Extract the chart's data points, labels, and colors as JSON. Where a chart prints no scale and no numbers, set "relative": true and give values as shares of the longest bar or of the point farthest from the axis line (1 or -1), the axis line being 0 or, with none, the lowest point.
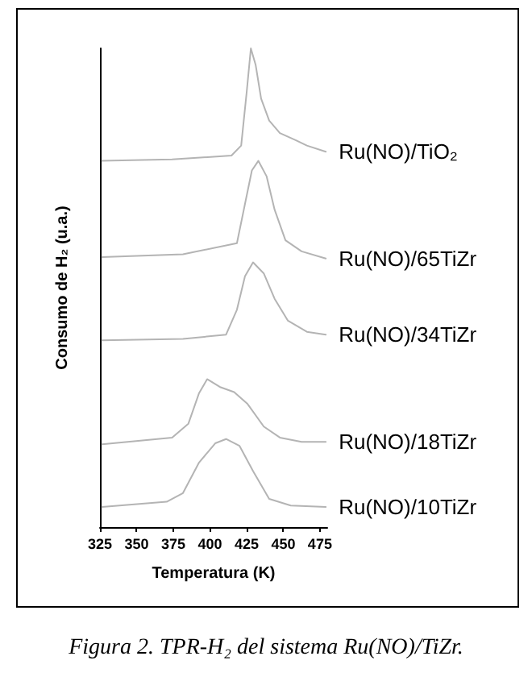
{
  "chart_data": {
    "type": "line",
    "title": "Figura 2. TPR-H₂ del sistema Ru(NO)/TiZr.",
    "xlabel": "Temperatura (K)",
    "ylabel": "Consumo de H₂ (u.a.)",
    "relative": true,
    "marker": "none",
    "line_style": "solid",
    "grid": false,
    "legend": false,
    "xlim": [
      325,
      480
    ],
    "xticks": [
      325,
      350,
      375,
      400,
      425,
      450,
      475
    ],
    "series": [
      {
        "name": "Ru(NO)/TiO₂",
        "color": "#b4b4b4",
        "x": [
          326.5,
          374.2,
          414.7,
          421.3,
          425.0,
          427.9,
          431.2,
          434.9,
          440.4,
          447.7,
          458.7,
          466.1,
          479.0
        ],
        "values": [
          0.765,
          0.768,
          0.776,
          0.797,
          0.907,
          1,
          0.965,
          0.895,
          0.849,
          0.823,
          0.808,
          0.797,
          0.784
        ]
      },
      {
        "name": "Ru(NO)/65TiZr",
        "color": "#b4b4b4",
        "x": [
          326.5,
          381.6,
          418.4,
          423.9,
          428.6,
          433.0,
          438.6,
          444.1,
          451.5,
          462.5,
          479.0
        ],
        "values": [
          0.564,
          0.57,
          0.593,
          0.675,
          0.745,
          0.765,
          0.733,
          0.663,
          0.599,
          0.576,
          0.561
        ]
      },
      {
        "name": "Ru(NO)/34TiZr",
        "color": "#b4b4b4",
        "x": [
          326.5,
          381.6,
          411.0,
          418.4,
          423.9,
          429.4,
          436.7,
          444.1,
          453.2,
          466.1,
          479.0
        ],
        "values": [
          0.39,
          0.393,
          0.402,
          0.454,
          0.524,
          0.553,
          0.53,
          0.477,
          0.431,
          0.408,
          0.402
        ]
      },
      {
        "name": "Ru(NO)/18TiZr",
        "color": "#b4b4b4",
        "x": [
          326.5,
          374.2,
          385.3,
          392.6,
          398.1,
          407.3,
          416.5,
          425.7,
          436.7,
          447.7,
          462.5,
          479.0
        ],
        "values": [
          0.173,
          0.187,
          0.216,
          0.28,
          0.309,
          0.292,
          0.282,
          0.257,
          0.21,
          0.187,
          0.178,
          0.178
        ]
      },
      {
        "name": "Ru(NO)/10TiZr",
        "color": "#b4b4b4",
        "x": [
          326.5,
          370.5,
          381.6,
          392.6,
          403.6,
          411.0,
          420.1,
          429.4,
          440.4,
          455.1,
          479.0
        ],
        "values": [
          0.042,
          0.053,
          0.071,
          0.135,
          0.175,
          0.184,
          0.17,
          0.117,
          0.059,
          0.045,
          0.042
        ]
      }
    ]
  }
}
